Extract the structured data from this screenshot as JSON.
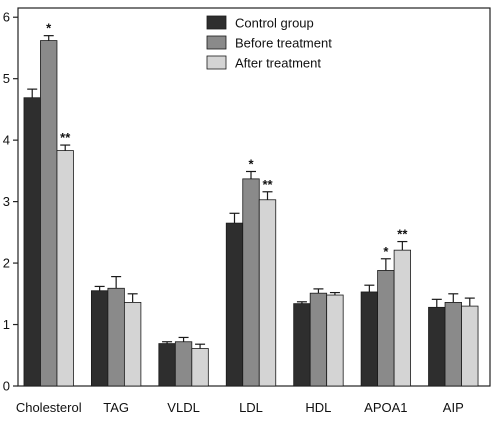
{
  "chart_data": {
    "type": "bar",
    "categories": [
      "Cholesterol",
      "TAG",
      "VLDL",
      "LDL",
      "HDL",
      "APOA1",
      "AIP"
    ],
    "series": [
      {
        "name": "Control group",
        "color": "#2e2e2e",
        "values": [
          4.69,
          1.55,
          0.69,
          2.65,
          1.34,
          1.53,
          1.28
        ],
        "errors": [
          0.14,
          0.07,
          0.03,
          0.16,
          0.03,
          0.11,
          0.13
        ],
        "significance": [
          "",
          "",
          "",
          "",
          "",
          "",
          ""
        ]
      },
      {
        "name": "Before treatment",
        "color": "#8a8a8a",
        "values": [
          5.62,
          1.59,
          0.72,
          3.37,
          1.51,
          1.88,
          1.36
        ],
        "errors": [
          0.08,
          0.19,
          0.07,
          0.12,
          0.07,
          0.19,
          0.14
        ],
        "significance": [
          "*",
          "",
          "",
          "*",
          "",
          "*",
          ""
        ]
      },
      {
        "name": "After treatment",
        "color": "#d4d4d4",
        "values": [
          3.83,
          1.36,
          0.61,
          3.03,
          1.48,
          2.21,
          1.3
        ],
        "errors": [
          0.09,
          0.14,
          0.07,
          0.13,
          0.04,
          0.14,
          0.13
        ],
        "significance": [
          "**",
          "",
          "",
          "**",
          "",
          "**",
          ""
        ]
      }
    ],
    "yticks": [
      0,
      1,
      2,
      3,
      4,
      5,
      6
    ],
    "ylim": [
      0,
      6.15
    ],
    "legend_position": "top-center",
    "grid": false
  }
}
